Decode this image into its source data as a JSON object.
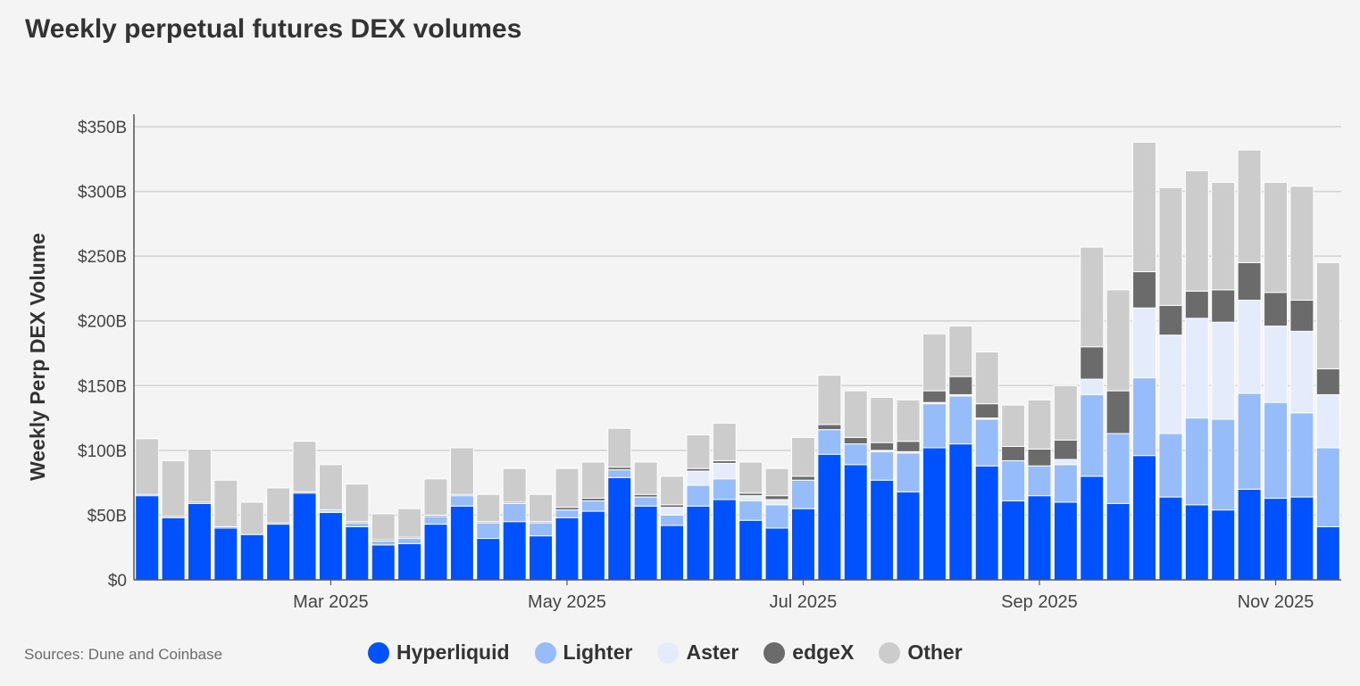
{
  "chart_data": {
    "type": "bar",
    "stacked": true,
    "title": "Weekly perpetual futures DEX volumes",
    "ylabel": "Weekly Perp DEX Volume",
    "xlabel": "",
    "ylim": [
      0,
      360
    ],
    "yticks": [
      {
        "value": 0,
        "label": "$0"
      },
      {
        "value": 50,
        "label": "$50B"
      },
      {
        "value": 100,
        "label": "$100B"
      },
      {
        "value": 150,
        "label": "$150B"
      },
      {
        "value": 200,
        "label": "$200B"
      },
      {
        "value": 250,
        "label": "$250B"
      },
      {
        "value": 300,
        "label": "$300B"
      },
      {
        "value": 350,
        "label": "$350B"
      }
    ],
    "xticks": [
      {
        "index": 7,
        "label": "Mar 2025"
      },
      {
        "index": 16,
        "label": "May 2025"
      },
      {
        "index": 25,
        "label": "Jul 2025"
      },
      {
        "index": 34,
        "label": "Sep 2025"
      },
      {
        "index": 43,
        "label": "Nov 2025"
      }
    ],
    "grid": true,
    "series": [
      {
        "name": "Hyperliquid",
        "color": "#0052ff",
        "values": [
          65,
          48,
          59,
          40,
          35,
          43,
          67,
          52,
          41,
          27,
          28,
          43,
          57,
          32,
          45,
          34,
          48,
          53,
          79,
          57,
          42,
          57,
          62,
          46,
          40,
          55,
          97,
          89,
          77,
          68,
          102,
          105,
          88,
          61,
          65,
          60,
          80,
          59,
          96,
          64,
          58,
          54,
          70,
          63,
          64,
          41
        ]
      },
      {
        "name": "Lighter",
        "color": "#96bcfa",
        "values": [
          0,
          0,
          0,
          0,
          0,
          0,
          0,
          1,
          3,
          3,
          4,
          6,
          8,
          12,
          14,
          10,
          6,
          8,
          6,
          7,
          8,
          16,
          16,
          15,
          18,
          22,
          19,
          16,
          22,
          30,
          34,
          37,
          36,
          31,
          23,
          29,
          63,
          54,
          60,
          49,
          67,
          70,
          74,
          74,
          65,
          61
        ]
      },
      {
        "name": "Aster",
        "color": "#e4ebfb",
        "values": [
          0,
          0,
          0,
          0,
          0,
          0,
          0,
          0,
          0,
          0,
          0,
          0,
          0,
          0,
          0,
          0,
          0,
          0,
          0,
          0,
          6,
          11,
          12,
          4,
          4,
          0,
          0,
          0,
          1,
          1,
          1,
          1,
          1,
          0,
          0,
          4,
          12,
          0,
          54,
          76,
          77,
          75,
          72,
          59,
          63,
          41
        ]
      },
      {
        "name": "edgeX",
        "color": "#6b6b6b",
        "values": [
          1,
          1,
          1,
          1,
          0,
          1,
          1,
          1,
          1,
          1,
          1,
          1,
          1,
          1,
          1,
          1,
          2,
          2,
          2,
          2,
          2,
          2,
          2,
          2,
          3,
          3,
          4,
          5,
          6,
          8,
          9,
          14,
          11,
          11,
          13,
          15,
          25,
          33,
          28,
          23,
          21,
          25,
          29,
          26,
          24,
          20
        ]
      },
      {
        "name": "Other",
        "color": "#cccccc",
        "values": [
          43,
          43,
          41,
          36,
          25,
          27,
          39,
          35,
          29,
          20,
          22,
          28,
          36,
          21,
          26,
          21,
          30,
          28,
          30,
          25,
          22,
          26,
          29,
          24,
          21,
          30,
          38,
          36,
          35,
          32,
          44,
          39,
          40,
          32,
          38,
          42,
          77,
          78,
          100,
          91,
          93,
          83,
          87,
          85,
          88,
          82
        ]
      }
    ]
  },
  "legend": {
    "items": [
      {
        "name": "Hyperliquid",
        "color": "#0052ff"
      },
      {
        "name": "Lighter",
        "color": "#96bcfa"
      },
      {
        "name": "Aster",
        "color": "#e4ebfb"
      },
      {
        "name": "edgeX",
        "color": "#6b6b6b"
      },
      {
        "name": "Other",
        "color": "#cccccc"
      }
    ]
  },
  "source_note": "Sources: Dune and Coinbase"
}
